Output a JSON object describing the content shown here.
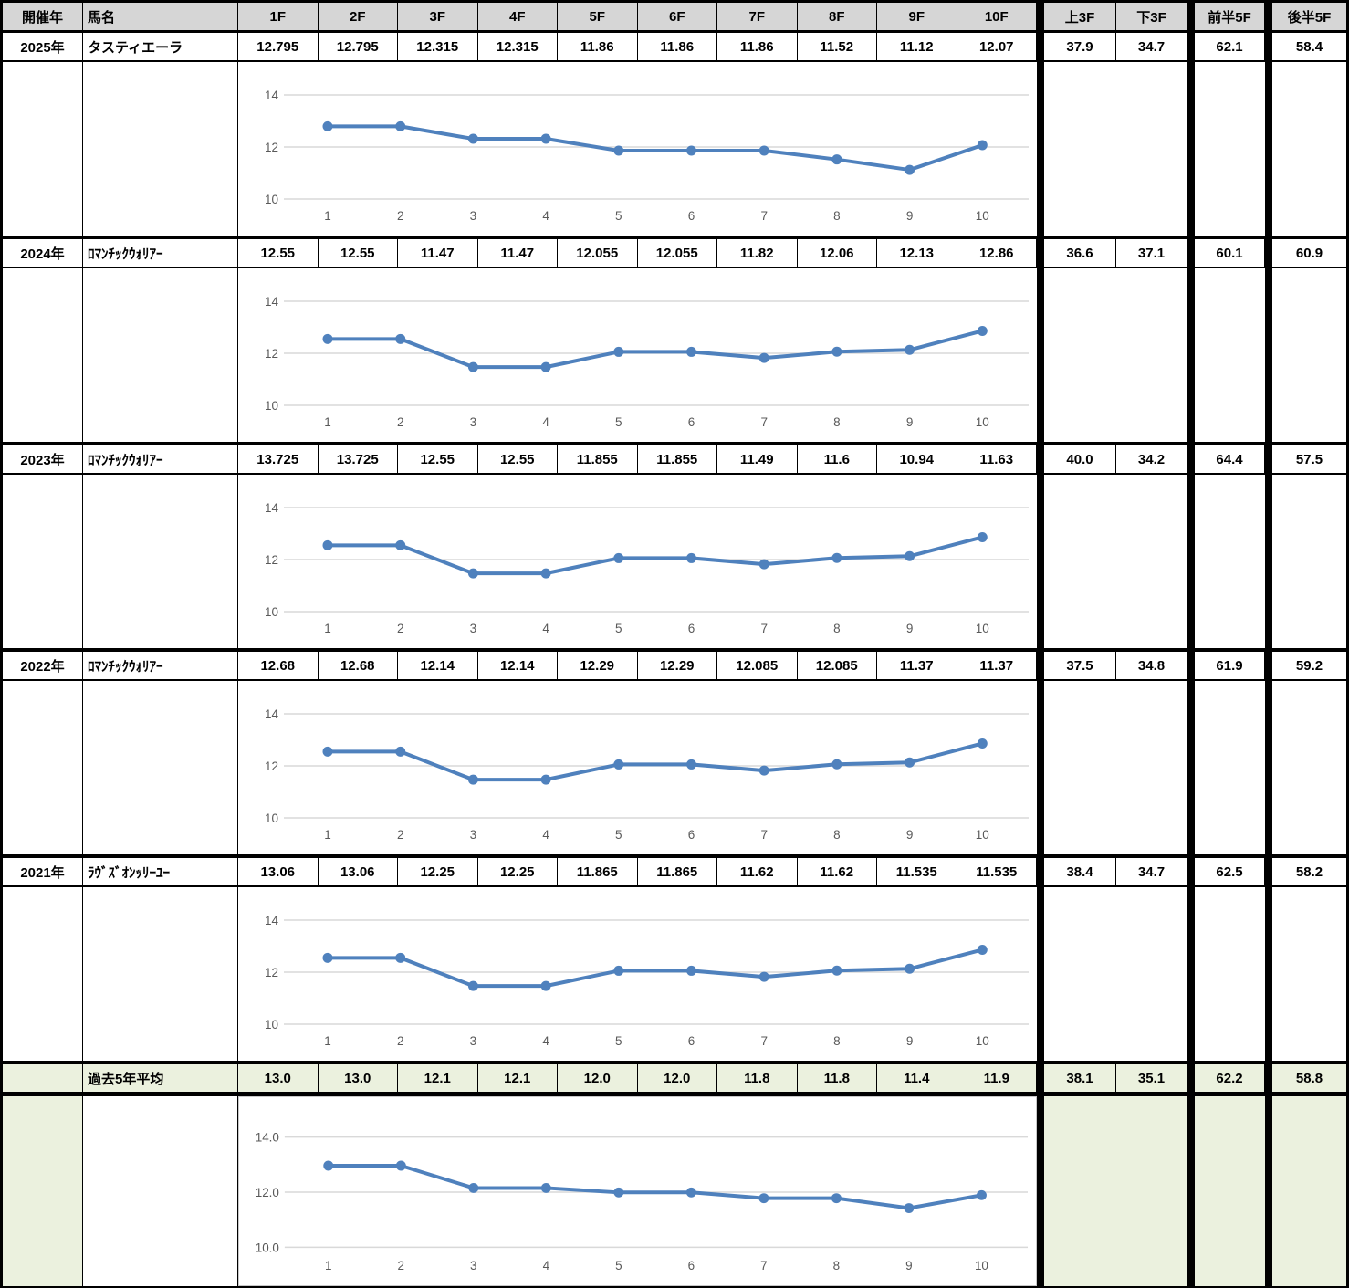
{
  "header": {
    "columns": [
      "開催年",
      "馬名",
      "1F",
      "2F",
      "3F",
      "4F",
      "5F",
      "6F",
      "7F",
      "8F",
      "9F",
      "10F",
      "上3F",
      "下3F",
      "前半5F",
      "後半5F"
    ]
  },
  "rows": [
    {
      "year": "2025年",
      "horse": "タスティエーラ",
      "f": [
        "12.795",
        "12.795",
        "12.315",
        "12.315",
        "11.86",
        "11.86",
        "11.86",
        "11.52",
        "11.12",
        "12.07"
      ],
      "summary": [
        "37.9",
        "34.7",
        "62.1",
        "58.4"
      ]
    },
    {
      "year": "2024年",
      "horse": "ﾛﾏﾝﾁｯｸｳｫﾘｱｰ",
      "f": [
        "12.55",
        "12.55",
        "11.47",
        "11.47",
        "12.055",
        "12.055",
        "11.82",
        "12.06",
        "12.13",
        "12.86"
      ],
      "summary": [
        "36.6",
        "37.1",
        "60.1",
        "60.9"
      ]
    },
    {
      "year": "2023年",
      "horse": "ﾛﾏﾝﾁｯｸｳｫﾘｱｰ",
      "f": [
        "13.725",
        "13.725",
        "12.55",
        "12.55",
        "11.855",
        "11.855",
        "11.49",
        "11.6",
        "10.94",
        "11.63"
      ],
      "summary": [
        "40.0",
        "34.2",
        "64.4",
        "57.5"
      ]
    },
    {
      "year": "2022年",
      "horse": "ﾛﾏﾝﾁｯｸｳｫﾘｱｰ",
      "f": [
        "12.68",
        "12.68",
        "12.14",
        "12.14",
        "12.29",
        "12.29",
        "12.085",
        "12.085",
        "11.37",
        "11.37"
      ],
      "summary": [
        "37.5",
        "34.8",
        "61.9",
        "59.2"
      ]
    },
    {
      "year": "2021年",
      "horse": "ﾗｳﾞｽﾞｵﾝｯﾘｰﾕｰ",
      "f": [
        "13.06",
        "13.06",
        "12.25",
        "12.25",
        "11.865",
        "11.865",
        "11.62",
        "11.62",
        "11.535",
        "11.535"
      ],
      "summary": [
        "38.4",
        "34.7",
        "62.5",
        "58.2"
      ]
    },
    {
      "year": "",
      "horse": "過去5年平均",
      "f": [
        "13.0",
        "13.0",
        "12.1",
        "12.1",
        "12.0",
        "12.0",
        "11.8",
        "11.8",
        "11.4",
        "11.9"
      ],
      "summary": [
        "38.1",
        "35.1",
        "62.2",
        "58.8"
      ]
    }
  ],
  "chart_data": [
    {
      "type": "line",
      "title": "2025 lap chart",
      "x": [
        1,
        2,
        3,
        4,
        5,
        6,
        7,
        8,
        9,
        10
      ],
      "xticks": [
        "1",
        "2",
        "3",
        "4",
        "5",
        "6",
        "7",
        "8",
        "9",
        "10"
      ],
      "yticks": [
        14,
        12,
        10
      ],
      "ytick_labels": [
        "14",
        "12",
        "10"
      ],
      "ylim": [
        8.7,
        15.3
      ],
      "grid": true,
      "legend": false,
      "values": [
        12.795,
        12.795,
        12.315,
        12.315,
        11.86,
        11.86,
        11.86,
        11.52,
        11.12,
        12.07
      ]
    },
    {
      "type": "line",
      "title": "2024 lap chart",
      "x": [
        1,
        2,
        3,
        4,
        5,
        6,
        7,
        8,
        9,
        10
      ],
      "xticks": [
        "1",
        "2",
        "3",
        "4",
        "5",
        "6",
        "7",
        "8",
        "9",
        "10"
      ],
      "yticks": [
        14,
        12,
        10
      ],
      "ytick_labels": [
        "14",
        "12",
        "10"
      ],
      "ylim": [
        8.7,
        15.3
      ],
      "grid": true,
      "legend": false,
      "values": [
        12.55,
        12.55,
        11.47,
        11.47,
        12.055,
        12.055,
        11.82,
        12.06,
        12.13,
        12.86
      ]
    },
    {
      "type": "line",
      "title": "2023 lap chart (plots same series as 2024)",
      "x": [
        1,
        2,
        3,
        4,
        5,
        6,
        7,
        8,
        9,
        10
      ],
      "xticks": [
        "1",
        "2",
        "3",
        "4",
        "5",
        "6",
        "7",
        "8",
        "9",
        "10"
      ],
      "yticks": [
        14,
        12,
        10
      ],
      "ytick_labels": [
        "14",
        "12",
        "10"
      ],
      "ylim": [
        8.7,
        15.3
      ],
      "grid": true,
      "legend": false,
      "values": [
        12.55,
        12.55,
        11.47,
        11.47,
        12.055,
        12.055,
        11.82,
        12.06,
        12.13,
        12.86
      ]
    },
    {
      "type": "line",
      "title": "2022 lap chart (plots same series as 2024)",
      "x": [
        1,
        2,
        3,
        4,
        5,
        6,
        7,
        8,
        9,
        10
      ],
      "xticks": [
        "1",
        "2",
        "3",
        "4",
        "5",
        "6",
        "7",
        "8",
        "9",
        "10"
      ],
      "yticks": [
        14,
        12,
        10
      ],
      "ytick_labels": [
        "14",
        "12",
        "10"
      ],
      "ylim": [
        8.7,
        15.3
      ],
      "grid": true,
      "legend": false,
      "values": [
        12.55,
        12.55,
        11.47,
        11.47,
        12.055,
        12.055,
        11.82,
        12.06,
        12.13,
        12.86
      ]
    },
    {
      "type": "line",
      "title": "2021 lap chart (plots same series as 2024)",
      "x": [
        1,
        2,
        3,
        4,
        5,
        6,
        7,
        8,
        9,
        10
      ],
      "xticks": [
        "1",
        "2",
        "3",
        "4",
        "5",
        "6",
        "7",
        "8",
        "9",
        "10"
      ],
      "yticks": [
        14,
        12,
        10
      ],
      "ytick_labels": [
        "14",
        "12",
        "10"
      ],
      "ylim": [
        8.7,
        15.3
      ],
      "grid": true,
      "legend": false,
      "values": [
        12.55,
        12.55,
        11.47,
        11.47,
        12.055,
        12.055,
        11.82,
        12.06,
        12.13,
        12.86
      ]
    },
    {
      "type": "line",
      "title": "5-year average lap chart",
      "x": [
        1,
        2,
        3,
        4,
        5,
        6,
        7,
        8,
        9,
        10
      ],
      "xticks": [
        "1",
        "2",
        "3",
        "4",
        "5",
        "6",
        "7",
        "8",
        "9",
        "10"
      ],
      "yticks": [
        14,
        12,
        10
      ],
      "ytick_labels": [
        "14.0",
        "12.0",
        "10.0"
      ],
      "ylim": [
        8.7,
        15.3
      ],
      "grid": true,
      "legend": false,
      "values": [
        12.96,
        12.96,
        12.15,
        12.15,
        11.99,
        11.99,
        11.78,
        11.78,
        11.42,
        11.89
      ]
    }
  ],
  "colors": {
    "header_bg": "#D6D6D6",
    "average_bg": "#EBF1DE",
    "line": "#4F81BD",
    "gridline": "#D9D9D9",
    "tick_text": "#595959",
    "border": "#000000"
  }
}
